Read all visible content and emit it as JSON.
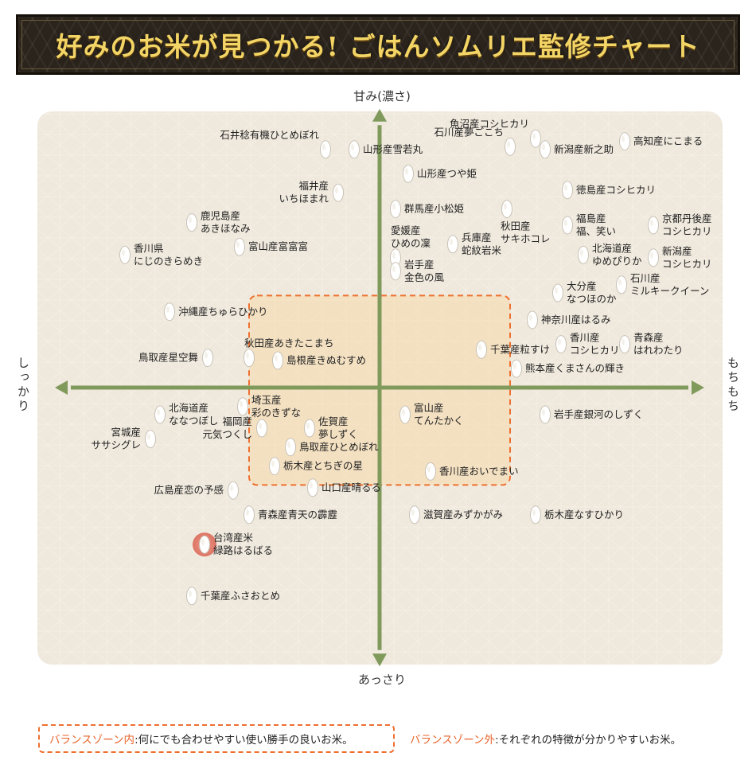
{
  "header": {
    "title": "好みのお米が見つかる! ごはんソムリエ監修チャート"
  },
  "axes": {
    "top": "甘み(濃さ)",
    "bottom": "あっさり",
    "left": "しっかり",
    "right": "もちもち"
  },
  "legend": {
    "inside_key": "バランスゾーン内",
    "inside_desc": ":何にでも合わせやすい使い勝手の良いお米。",
    "outside_key": "バランスゾーン外",
    "outside_desc": ":それぞれの特徴が分かりやすいお米。"
  },
  "colors": {
    "background": "#efe8dc",
    "axis": "#809a5c",
    "balance_zone_border": "#ee7030",
    "balance_zone_fill": "#f7d7a6",
    "highlight": "#e77c6c",
    "legend_key": "#e8632a"
  },
  "chart_data": {
    "type": "scatter",
    "title": "好みのお米が見つかる! ごはんソムリエ監修チャート",
    "xlabel_left": "しっかり",
    "xlabel_right": "もちもち",
    "ylabel_top": "甘み(濃さ)",
    "ylabel_bottom": "あっさり",
    "xlim": [
      -100,
      100
    ],
    "ylim": [
      -100,
      100
    ],
    "grid": false,
    "balance_zone": {
      "x": [
        -41,
        41
      ],
      "y": [
        -36,
        34
      ]
    },
    "points": [
      {
        "name": "石井稔有機ひとめぼれ",
        "x": -17,
        "y": 88,
        "label_side": "top",
        "highlight": false
      },
      {
        "name": "山形産雪若丸",
        "x": -8,
        "y": 88,
        "label_side": "right",
        "highlight": false
      },
      {
        "name": "山形産つや姫",
        "x": 9,
        "y": 79,
        "label_side": "right",
        "highlight": false
      },
      {
        "name": "石川産夢ごこち",
        "x": 41,
        "y": 89,
        "label_side": "top",
        "highlight": false
      },
      {
        "name": "魚沼産コシヒカリ",
        "x": 49,
        "y": 92,
        "label_side": "top",
        "highlight": false
      },
      {
        "name": "新潟産新之助",
        "x": 52,
        "y": 88,
        "label_side": "right",
        "highlight": false
      },
      {
        "name": "高知産にこまる",
        "x": 77,
        "y": 91,
        "label_side": "right",
        "highlight": false
      },
      {
        "name": "福井産\nいちほまれ",
        "x": -13,
        "y": 72,
        "label_side": "left",
        "highlight": false
      },
      {
        "name": "群馬産小松姫",
        "x": 5,
        "y": 66,
        "label_side": "right",
        "highlight": false
      },
      {
        "name": "徳島産コシヒカリ",
        "x": 59,
        "y": 73,
        "label_side": "right",
        "highlight": false
      },
      {
        "name": "鹿児島産\nあきほなみ",
        "x": -59,
        "y": 61,
        "label_side": "right",
        "highlight": false
      },
      {
        "name": "秋田産\nサキホコレ",
        "x": 40,
        "y": 66,
        "label_side": "below",
        "highlight": false
      },
      {
        "name": "兵庫産\n蛇紋岩米",
        "x": 23,
        "y": 53,
        "label_side": "right",
        "highlight": false
      },
      {
        "name": "福島産\n福、笑い",
        "x": 59,
        "y": 60,
        "label_side": "right",
        "highlight": false
      },
      {
        "name": "京都丹後産\nコシヒカリ",
        "x": 86,
        "y": 60,
        "label_side": "right",
        "highlight": false
      },
      {
        "name": "富山産富富富",
        "x": -44,
        "y": 52,
        "label_side": "right",
        "highlight": false
      },
      {
        "name": "愛媛産\nひめの凜",
        "x": 5,
        "y": 48,
        "label_side": "above",
        "highlight": false
      },
      {
        "name": "岩手産\n金色の風",
        "x": 5,
        "y": 43,
        "label_side": "right",
        "highlight": false
      },
      {
        "name": "北海道産\nゆめぴりか",
        "x": 64,
        "y": 49,
        "label_side": "right",
        "highlight": false
      },
      {
        "name": "新潟産\nコシヒカリ",
        "x": 86,
        "y": 48,
        "label_side": "right",
        "highlight": false
      },
      {
        "name": "香川県\nにじのきらめき",
        "x": -80,
        "y": 49,
        "label_side": "right",
        "highlight": false
      },
      {
        "name": "大分産\nなつほのか",
        "x": 56,
        "y": 35,
        "label_side": "right",
        "highlight": false
      },
      {
        "name": "石川産\nミルキークイーン",
        "x": 76,
        "y": 38,
        "label_side": "right",
        "highlight": false
      },
      {
        "name": "沖縄産ちゅらひかり",
        "x": -66,
        "y": 28,
        "label_side": "right",
        "highlight": false
      },
      {
        "name": "神奈川産はるみ",
        "x": 48,
        "y": 25,
        "label_side": "right",
        "highlight": false
      },
      {
        "name": "秋田産あきたこまち",
        "x": -41,
        "y": 11,
        "label_side": "above",
        "highlight": false
      },
      {
        "name": "島根産きぬむすめ",
        "x": -32,
        "y": 10,
        "label_side": "right",
        "highlight": false
      },
      {
        "name": "鳥取産星空舞",
        "x": -54,
        "y": 11,
        "label_side": "left",
        "highlight": false
      },
      {
        "name": "千葉産粒すけ",
        "x": 32,
        "y": 14,
        "label_side": "right",
        "highlight": false
      },
      {
        "name": "香川産\nコシヒカリ",
        "x": 57,
        "y": 16,
        "label_side": "right",
        "highlight": false
      },
      {
        "name": "青森産\nはれわたり",
        "x": 77,
        "y": 16,
        "label_side": "right",
        "highlight": false
      },
      {
        "name": "熊本産くまさんの輝き",
        "x": 43,
        "y": 7,
        "label_side": "right",
        "highlight": false
      },
      {
        "name": "埼玉産\n彩のきずな",
        "x": -43,
        "y": -7,
        "label_side": "right",
        "highlight": false
      },
      {
        "name": "北海道産\nななつぼし",
        "x": -69,
        "y": -10,
        "label_side": "right",
        "highlight": false
      },
      {
        "name": "岩手産銀河のしずく",
        "x": 52,
        "y": -10,
        "label_side": "right",
        "highlight": false
      },
      {
        "name": "富山産\nてんたかく",
        "x": 8,
        "y": -10,
        "label_side": "right",
        "highlight": false
      },
      {
        "name": "佐賀産\n夢しずく",
        "x": -22,
        "y": -15,
        "label_side": "right",
        "highlight": false
      },
      {
        "name": "福岡産\n元気つくし",
        "x": -37,
        "y": -15,
        "label_side": "left",
        "highlight": false
      },
      {
        "name": "宮城産\nササシグレ",
        "x": -72,
        "y": -19,
        "label_side": "left",
        "highlight": false
      },
      {
        "name": "鳥取産ひとめぼれ",
        "x": -28,
        "y": -22,
        "label_side": "right",
        "highlight": false
      },
      {
        "name": "栃木産とちぎの星",
        "x": -33,
        "y": -29,
        "label_side": "right",
        "highlight": false
      },
      {
        "name": "香川産おいでまい",
        "x": 16,
        "y": -31,
        "label_side": "right",
        "highlight": false
      },
      {
        "name": "山口産晴るる",
        "x": -21,
        "y": -37,
        "label_side": "right",
        "highlight": false
      },
      {
        "name": "広島産恋の予感",
        "x": -46,
        "y": -38,
        "label_side": "left",
        "highlight": false
      },
      {
        "name": "青森産青天の霹靂",
        "x": -41,
        "y": -47,
        "label_side": "right",
        "highlight": false
      },
      {
        "name": "滋賀産みずかがみ",
        "x": 11,
        "y": -47,
        "label_side": "right",
        "highlight": false
      },
      {
        "name": "栃木産なすひかり",
        "x": 49,
        "y": -47,
        "label_side": "right",
        "highlight": false
      },
      {
        "name": "台湾産米\n緑路はるばる",
        "x": -55,
        "y": -58,
        "label_side": "right",
        "highlight": true
      },
      {
        "name": "千葉産ふさおとめ",
        "x": -59,
        "y": -77,
        "label_side": "right",
        "highlight": false
      }
    ]
  }
}
